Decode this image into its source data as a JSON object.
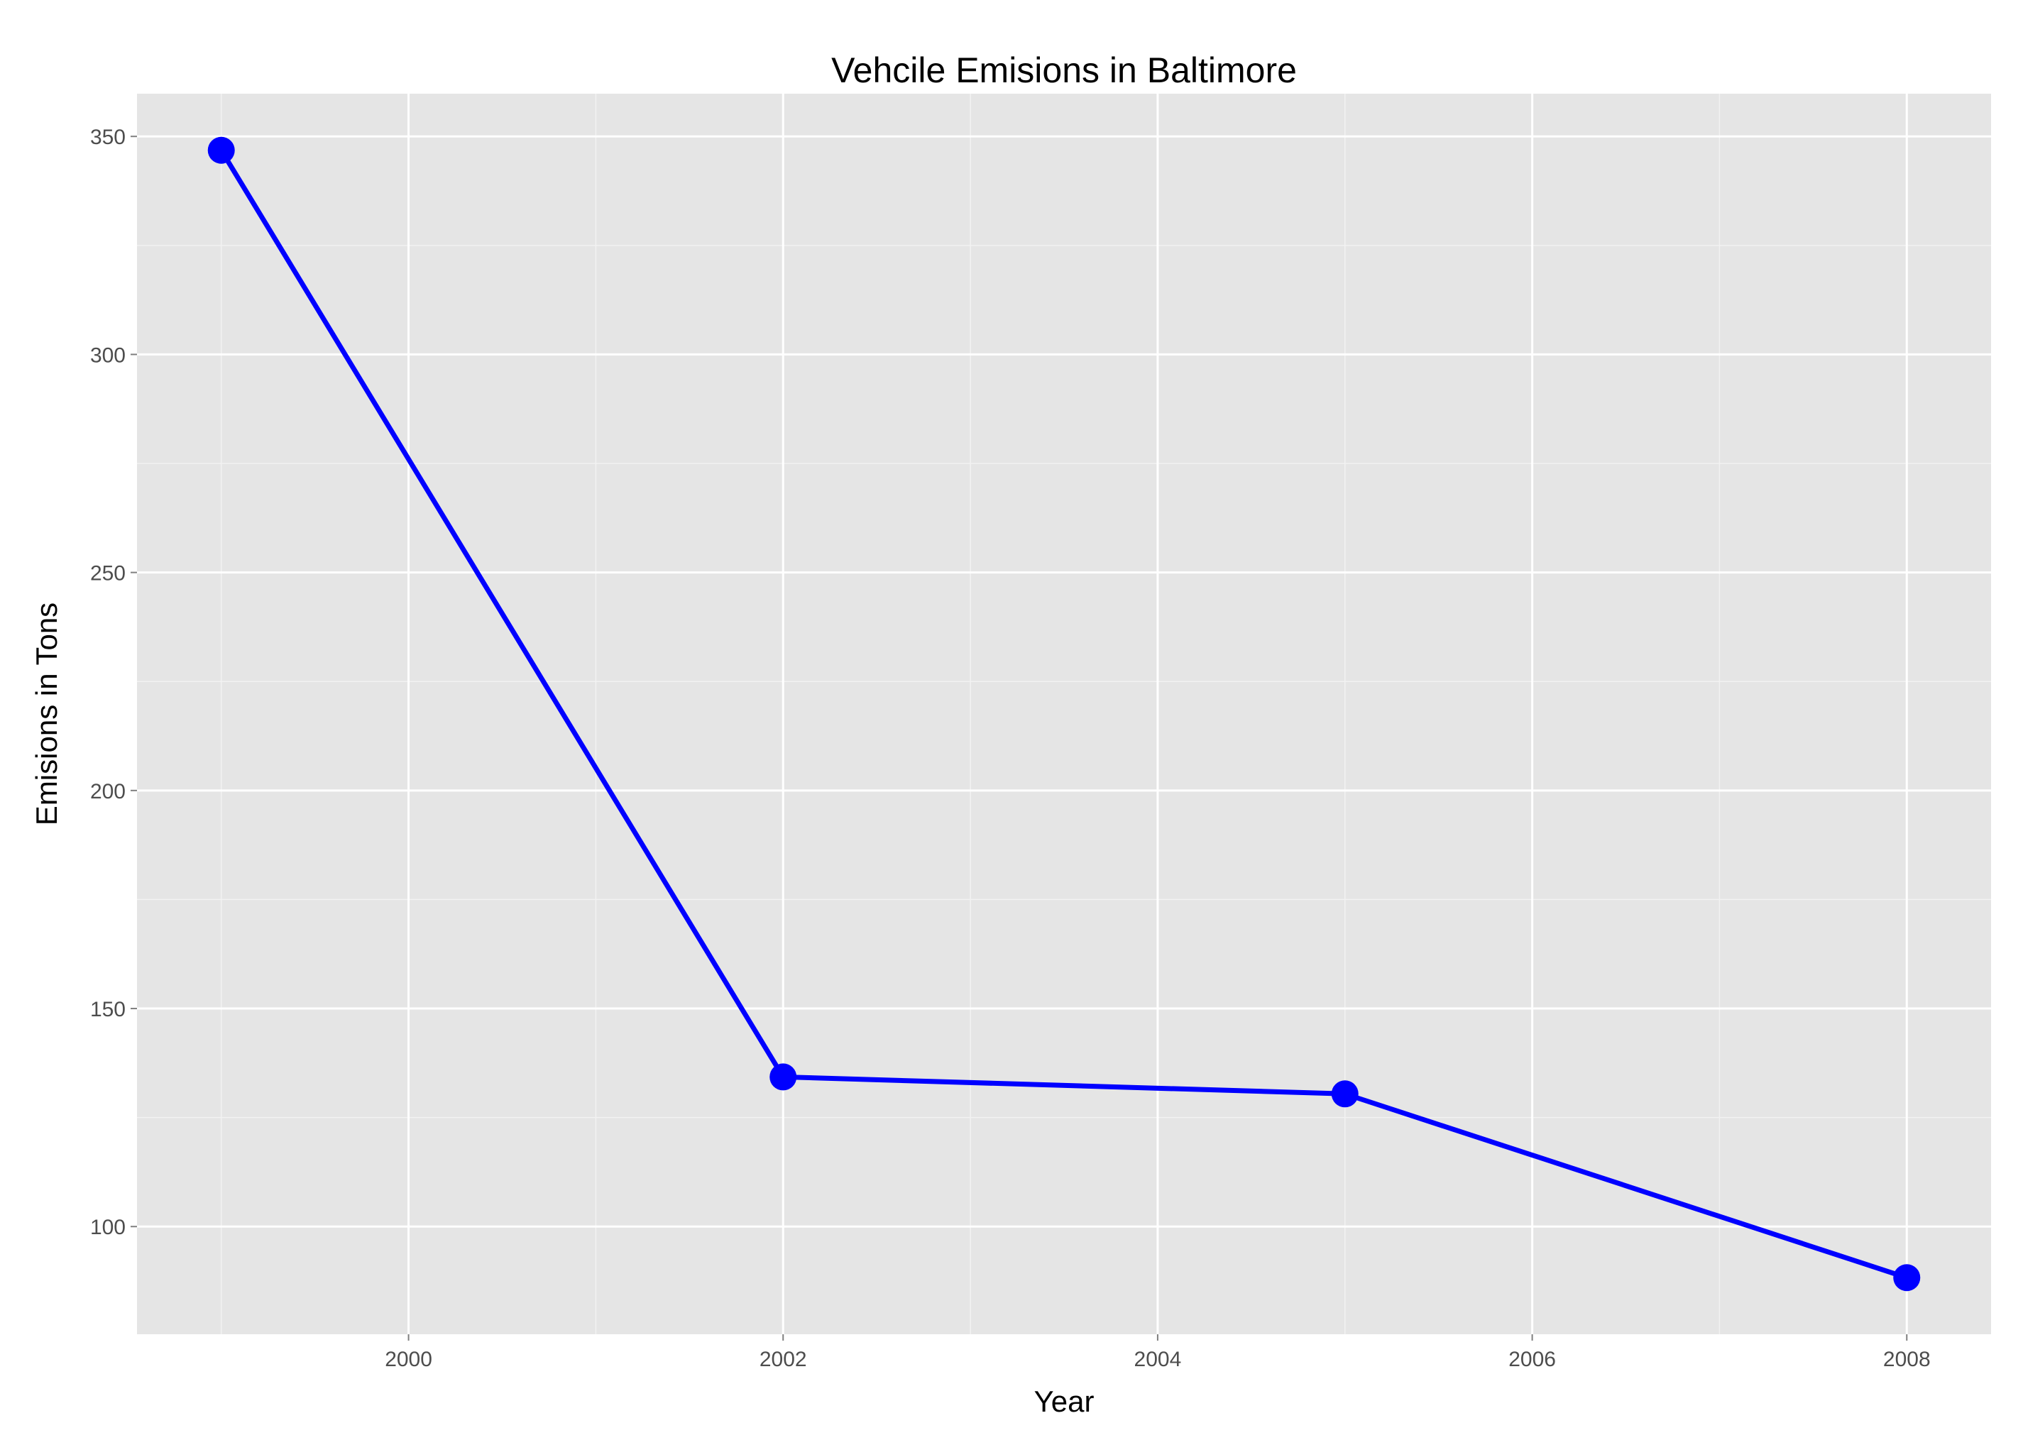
{
  "chart_data": {
    "type": "line",
    "title": "Vehcile Emisions in Baltimore",
    "xlabel": "Year",
    "ylabel": "Emisions in Tons",
    "x": [
      1999,
      2002,
      2005,
      2008
    ],
    "series": [
      {
        "values": [
          346.82,
          134.31,
          130.43,
          88.28
        ]
      }
    ],
    "xlim": [
      1998.55,
      2008.45
    ],
    "ylim": [
      75.3,
      359.8
    ],
    "xticks": [
      2000,
      2002,
      2004,
      2006,
      2008
    ],
    "yticks": [
      100,
      150,
      200,
      250,
      300,
      350
    ],
    "xtick_labels": [
      "2000",
      "2002",
      "2004",
      "2006",
      "2008"
    ],
    "ytick_labels": [
      "100",
      "150",
      "200",
      "250",
      "300",
      "350"
    ],
    "grid": true,
    "legend": "none",
    "colors": {
      "panel_background": "#e5e5e5",
      "grid_major": "#ffffff",
      "grid_minor": "#f2f2f2",
      "line": "#0000ff",
      "point": "#0000ff",
      "tick_label": "#4d4d4d",
      "tick_mark": "#7f7f7f"
    }
  }
}
